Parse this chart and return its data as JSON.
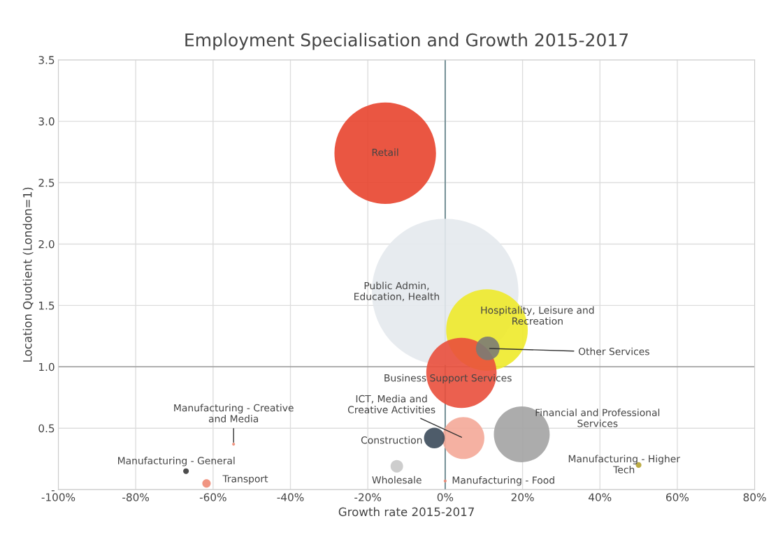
{
  "chart_data": {
    "type": "bubble",
    "title": "Employment Specialisation and Growth 2015-2017",
    "xlabel": "Growth rate 2015-2017",
    "ylabel": "Location Quotient (London=1)",
    "xlim": [
      -100,
      80
    ],
    "ylim": [
      0,
      3.5
    ],
    "xticks": [
      {
        "value": -100,
        "label": "-100%"
      },
      {
        "value": -80,
        "label": "-80%"
      },
      {
        "value": -60,
        "label": "-60%"
      },
      {
        "value": -40,
        "label": "-40%"
      },
      {
        "value": -20,
        "label": "-20%"
      },
      {
        "value": 0,
        "label": "0%"
      },
      {
        "value": 20,
        "label": "20%"
      },
      {
        "value": 40,
        "label": "40%"
      },
      {
        "value": 60,
        "label": "60%"
      },
      {
        "value": 80,
        "label": "80%"
      }
    ],
    "yticks": [
      {
        "value": 0,
        "label": "-"
      },
      0.5,
      {
        "value": 1,
        "label": "1.0"
      },
      1.5,
      {
        "value": 2,
        "label": "2.0"
      },
      2.5,
      {
        "value": 3,
        "label": "3.0"
      },
      3.5
    ],
    "grid": true,
    "legend": false,
    "ref_lines": [
      {
        "axis": "y",
        "value": 1,
        "color": "#9a9a9a"
      },
      {
        "axis": "x",
        "value": 0,
        "color": "#5f7f86"
      }
    ],
    "series": [
      {
        "name": "Public Admin,\nEducation, Health",
        "color": "#e4e9ed",
        "x": [
          0
        ],
        "values": [
          1.61
        ],
        "sizes": [
          1
        ]
      },
      {
        "name": "Retail",
        "color": "#e8442e",
        "x": [
          -15.5
        ],
        "values": [
          2.74
        ],
        "sizes": [
          0.48
        ]
      },
      {
        "name": "Hospitality, Leisure and\nRecreation",
        "color": "#eeea2a",
        "x": [
          10.8
        ],
        "values": [
          1.3
        ],
        "sizes": [
          0.31
        ]
      },
      {
        "name": "Business Support Services",
        "color": "#e94f3c",
        "x": [
          4.2
        ],
        "values": [
          0.95
        ],
        "sizes": [
          0.23
        ]
      },
      {
        "name": "Financial and Professional\nServices",
        "color": "#a3a3a3",
        "x": [
          19.8
        ],
        "values": [
          0.45
        ],
        "sizes": [
          0.145
        ]
      },
      {
        "name": "ICT, Media and\nCreative Activities",
        "color": "#f4a898",
        "x": [
          4.7
        ],
        "values": [
          0.42
        ],
        "sizes": [
          0.082
        ]
      },
      {
        "name": "Other Services",
        "color": "#7b7b74",
        "x": [
          11
        ],
        "values": [
          1.15
        ],
        "sizes": [
          0.026
        ]
      },
      {
        "name": "Construction",
        "color": "#3b4a5a",
        "x": [
          -2.8
        ],
        "values": [
          0.42
        ],
        "sizes": [
          0.02
        ]
      },
      {
        "name": "Wholesale",
        "color": "#c8c8c8",
        "x": [
          -12.5
        ],
        "values": [
          0.19
        ],
        "sizes": [
          0.0073
        ]
      },
      {
        "name": "Transport",
        "color": "#ee8a74",
        "x": [
          -61.7
        ],
        "values": [
          0.05
        ],
        "sizes": [
          0.0033
        ]
      },
      {
        "name": "Manufacturing - General",
        "color": "#3a3a3a",
        "x": [
          -67
        ],
        "values": [
          0.15
        ],
        "sizes": [
          0.0015
        ]
      },
      {
        "name": "Manufacturing - Higher\nTech",
        "color": "#b5a332",
        "x": [
          50
        ],
        "values": [
          0.2
        ],
        "sizes": [
          0.0015
        ]
      },
      {
        "name": "Manufacturing - Creative\nand Media",
        "color": "#ee8a74",
        "x": [
          -54.7
        ],
        "values": [
          0.37
        ],
        "sizes": [
          0.0004
        ]
      },
      {
        "name": "Manufacturing - Food",
        "color": "#ee8a74",
        "x": [
          0
        ],
        "values": [
          0.07
        ],
        "sizes": [
          0.0004
        ]
      }
    ]
  }
}
